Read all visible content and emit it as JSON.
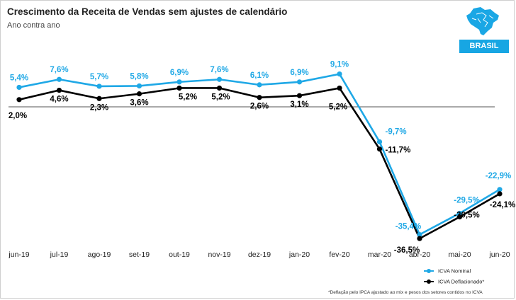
{
  "header": {
    "title": "Crescimento da Receita de Vendas sem ajustes de calendário",
    "subtitle": "Ano contra ano",
    "badge": "BRASIL"
  },
  "footnote": "*Deflação pelo IPCA ajustado ao mix e pesos dos setores contidos no ICVA",
  "colors": {
    "nominal": "#1fa8e6",
    "deflated": "#000000",
    "badge": "#17a6e3"
  },
  "chart_data": {
    "type": "line",
    "categories": [
      "jun-19",
      "jul-19",
      "ago-19",
      "set-19",
      "out-19",
      "nov-19",
      "dez-19",
      "jan-20",
      "fev-20",
      "mar-20",
      "abr-20",
      "mai-20",
      "jun-20"
    ],
    "series": [
      {
        "name": "ICVA Nominal",
        "values": [
          5.4,
          7.6,
          5.7,
          5.8,
          6.9,
          7.6,
          6.1,
          6.9,
          9.1,
          -9.7,
          -35.4,
          -29.5,
          -22.9
        ],
        "labels": [
          "5,4%",
          "7,6%",
          "5,7%",
          "5,8%",
          "6,9%",
          "7,6%",
          "6,1%",
          "6,9%",
          "9,1%",
          "-9,7%",
          "-35,4%",
          "-29,5%",
          "-22,9%"
        ]
      },
      {
        "name": "ICVA Deflacionado*",
        "values": [
          2.0,
          4.6,
          2.3,
          3.6,
          5.2,
          5.2,
          2.6,
          3.1,
          5.2,
          -11.7,
          -36.5,
          -30.5,
          -24.1
        ],
        "labels": [
          "2,0%",
          "4,6%",
          "2,3%",
          "3,6%",
          "5,2%",
          "5,2%",
          "2,6%",
          "3,1%",
          "5,2%",
          "-11,7%",
          "-36,5%",
          "-30,5%",
          "-24,1%"
        ]
      }
    ],
    "legend_position": "bottom-right",
    "grid": false,
    "reference_line": 0
  }
}
